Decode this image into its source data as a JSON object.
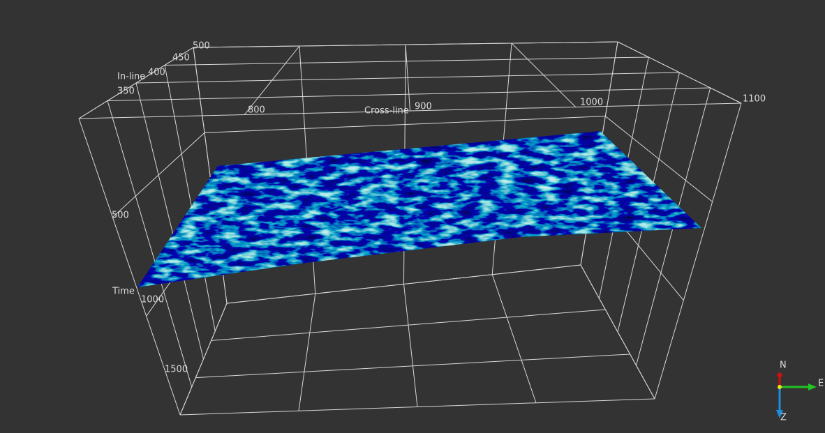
{
  "axes": {
    "inline": {
      "label": "In-line",
      "ticks": [
        350,
        400,
        450,
        500
      ]
    },
    "crossline": {
      "label": "Cross-line",
      "ticks": [
        800,
        900,
        1000,
        1100
      ]
    },
    "time": {
      "label": "Time",
      "ticks": [
        500,
        1000,
        1500
      ]
    }
  },
  "compass": {
    "north": "N",
    "east": "E",
    "down": "Z"
  }
}
